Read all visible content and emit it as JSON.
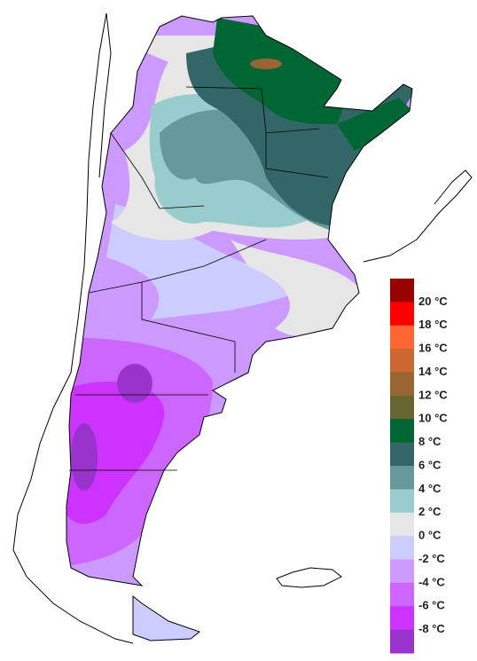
{
  "legend": {
    "colors": [
      "#990000",
      "#ff0000",
      "#ff6633",
      "#cc6633",
      "#996633",
      "#666633",
      "#006633",
      "#336666",
      "#669999",
      "#99cccc",
      "#e6e6e6",
      "#ccccff",
      "#cc99ff",
      "#cc66ff",
      "#cc33ff",
      "#9933cc"
    ],
    "labels": [
      "20 °C",
      "18 °C",
      "16 °C",
      "14 °C",
      "12 °C",
      "10 °C",
      "8 °C",
      "6 °C",
      "4 °C",
      "2 °C",
      "0 °C",
      "-2 °C",
      "-4 °C",
      "-6 °C",
      "-8 °C"
    ]
  }
}
